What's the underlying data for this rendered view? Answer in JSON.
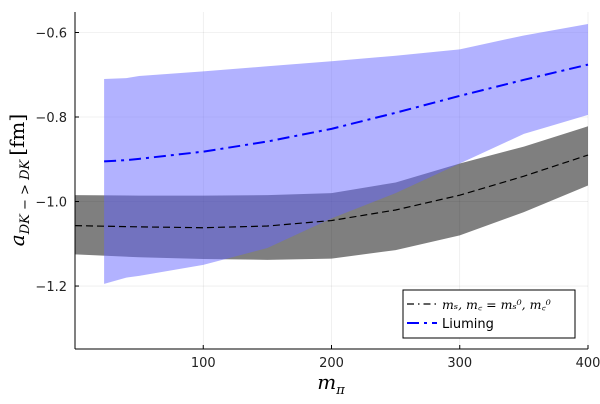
{
  "chart_data": {
    "type": "line",
    "title": "",
    "xlabel": "m_π",
    "ylabel": "a_{DK->DK} [fm]",
    "xlim": [
      0,
      400
    ],
    "ylim": [
      -1.349,
      -0.5515
    ],
    "grid": true,
    "legend_position": "bottom-right",
    "xticks": [
      100,
      200,
      300,
      400
    ],
    "yticks": [
      -0.6,
      -0.8,
      -1.0,
      -1.2
    ],
    "xtick_labels": [
      "100",
      "200",
      "300",
      "400"
    ],
    "ytick_labels": [
      "−0.6",
      "−0.8",
      "−1.0",
      "−1.2"
    ],
    "series": [
      {
        "name": "m_s, m_c = m_s^0, m_c^0",
        "color": "#000000",
        "band_color": "#000000",
        "style": "dashed",
        "x": [
          0,
          50,
          100,
          150,
          200,
          250,
          300,
          350,
          400
        ],
        "values": [
          -1.057,
          -1.06,
          -1.062,
          -1.058,
          -1.045,
          -1.02,
          -0.985,
          -0.94,
          -0.89
        ],
        "upper": [
          -0.985,
          -0.986,
          -0.986,
          -0.985,
          -0.98,
          -0.955,
          -0.91,
          -0.87,
          -0.822
        ],
        "lower": [
          -1.125,
          -1.132,
          -1.136,
          -1.138,
          -1.135,
          -1.115,
          -1.08,
          -1.025,
          -0.962
        ]
      },
      {
        "name": "Liuming",
        "color": "#0000ff",
        "band_color": "#6666ff",
        "style": "dashdot",
        "x": [
          22.7,
          40,
          50,
          100,
          150,
          200,
          250,
          300,
          350,
          400
        ],
        "values": [
          -0.905,
          -0.902,
          -0.899,
          -0.882,
          -0.858,
          -0.828,
          -0.79,
          -0.75,
          -0.712,
          -0.676
        ],
        "upper": [
          -0.71,
          -0.708,
          -0.703,
          -0.692,
          -0.68,
          -0.668,
          -0.655,
          -0.64,
          -0.607,
          -0.58
        ],
        "lower": [
          -1.195,
          -1.18,
          -1.176,
          -1.15,
          -1.11,
          -1.04,
          -0.98,
          -0.91,
          -0.84,
          -0.795
        ]
      }
    ]
  },
  "legend": {
    "entry1": "mₛ, m꜀ = mₛ⁰, m꜀⁰",
    "entry2": "Liuming"
  },
  "axes": {
    "xlabel_main": "m",
    "xlabel_sub": "π",
    "ylabel_main": "a",
    "ylabel_sub": "DK − > DK",
    "ylabel_unit": "[fm]"
  }
}
